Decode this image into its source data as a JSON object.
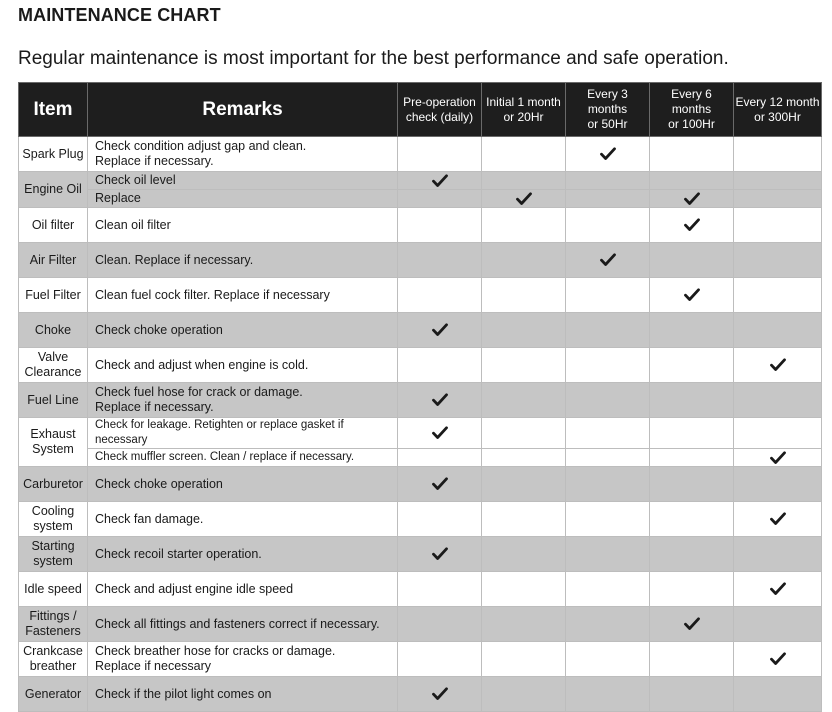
{
  "title": "MAINTENANCE CHART",
  "subtitle": "Regular maintenance is most important for the best performance and safe operation.",
  "columns": {
    "item": "Item",
    "remarks": "Remarks",
    "intervals": [
      {
        "line1": "Pre-operation",
        "line2": "check (daily)"
      },
      {
        "line1": "Initial 1 month",
        "line2": "or 20Hr"
      },
      {
        "line1": "Every 3 months",
        "line2": "or 50Hr"
      },
      {
        "line1": "Every 6 months",
        "line2": "or 100Hr"
      },
      {
        "line1": "Every 12 month",
        "line2": "or 300Hr"
      }
    ]
  },
  "check_icon": "checkmark-icon",
  "colors": {
    "header_bg": "#1e1e1e",
    "band_gray": "#c6c6c6",
    "check": "#1a1a1a"
  },
  "rows": [
    {
      "item": [
        "Spark Plug"
      ],
      "remarks": [
        "Check condition adjust gap and clean.",
        "Replace if necessary."
      ],
      "checks": [
        false,
        false,
        true,
        false,
        false
      ]
    },
    {
      "item": [
        "Engine Oil"
      ],
      "remarks": [
        "Check oil level"
      ],
      "checks": [
        true,
        false,
        false,
        false,
        false
      ]
    },
    {
      "remarks": [
        "Replace"
      ],
      "checks": [
        false,
        true,
        false,
        true,
        false
      ]
    },
    {
      "item": [
        "Oil filter"
      ],
      "remarks": [
        "Clean oil filter"
      ],
      "checks": [
        false,
        false,
        false,
        true,
        false
      ]
    },
    {
      "item": [
        "Air Filter"
      ],
      "remarks": [
        "Clean. Replace if necessary."
      ],
      "checks": [
        false,
        false,
        true,
        false,
        false
      ]
    },
    {
      "item": [
        "Fuel Filter"
      ],
      "remarks": [
        "Clean fuel cock filter. Replace if necessary"
      ],
      "checks": [
        false,
        false,
        false,
        true,
        false
      ]
    },
    {
      "item": [
        "Choke"
      ],
      "remarks": [
        "Check choke operation"
      ],
      "checks": [
        true,
        false,
        false,
        false,
        false
      ]
    },
    {
      "item": [
        "Valve",
        "Clearance"
      ],
      "remarks": [
        "Check and adjust when engine is cold."
      ],
      "checks": [
        false,
        false,
        false,
        false,
        true
      ]
    },
    {
      "item": [
        "Fuel Line"
      ],
      "remarks": [
        "Check fuel hose for crack or damage.",
        "Replace if necessary."
      ],
      "checks": [
        true,
        false,
        false,
        false,
        false
      ]
    },
    {
      "item": [
        "Exhaust",
        "System"
      ],
      "remarks": [
        "Check for leakage. Retighten or replace gasket if necessary"
      ],
      "checks": [
        true,
        false,
        false,
        false,
        false
      ]
    },
    {
      "remarks": [
        "Check muffler screen. Clean / replace if necessary."
      ],
      "checks": [
        false,
        false,
        false,
        false,
        true
      ]
    },
    {
      "item": [
        "Carburetor"
      ],
      "remarks": [
        "Check choke operation"
      ],
      "checks": [
        true,
        false,
        false,
        false,
        false
      ]
    },
    {
      "item": [
        "Cooling",
        "system"
      ],
      "remarks": [
        "Check fan damage."
      ],
      "checks": [
        false,
        false,
        false,
        false,
        true
      ]
    },
    {
      "item": [
        "Starting",
        "system"
      ],
      "remarks": [
        "Check recoil starter operation."
      ],
      "checks": [
        true,
        false,
        false,
        false,
        false
      ]
    },
    {
      "item": [
        "Idle speed"
      ],
      "remarks": [
        "Check and adjust engine idle speed"
      ],
      "checks": [
        false,
        false,
        false,
        false,
        true
      ]
    },
    {
      "item": [
        "Fittings /",
        "Fasteners"
      ],
      "remarks": [
        "Check all fittings and fasteners correct if necessary."
      ],
      "checks": [
        false,
        false,
        false,
        true,
        false
      ]
    },
    {
      "item": [
        "Crankcase",
        "breather"
      ],
      "remarks": [
        "Check breather hose for cracks or damage.",
        "Replace if necessary"
      ],
      "checks": [
        false,
        false,
        false,
        false,
        true
      ]
    },
    {
      "item": [
        "Generator"
      ],
      "remarks": [
        "Check if the pilot light comes on"
      ],
      "checks": [
        true,
        false,
        false,
        false,
        false
      ]
    }
  ]
}
